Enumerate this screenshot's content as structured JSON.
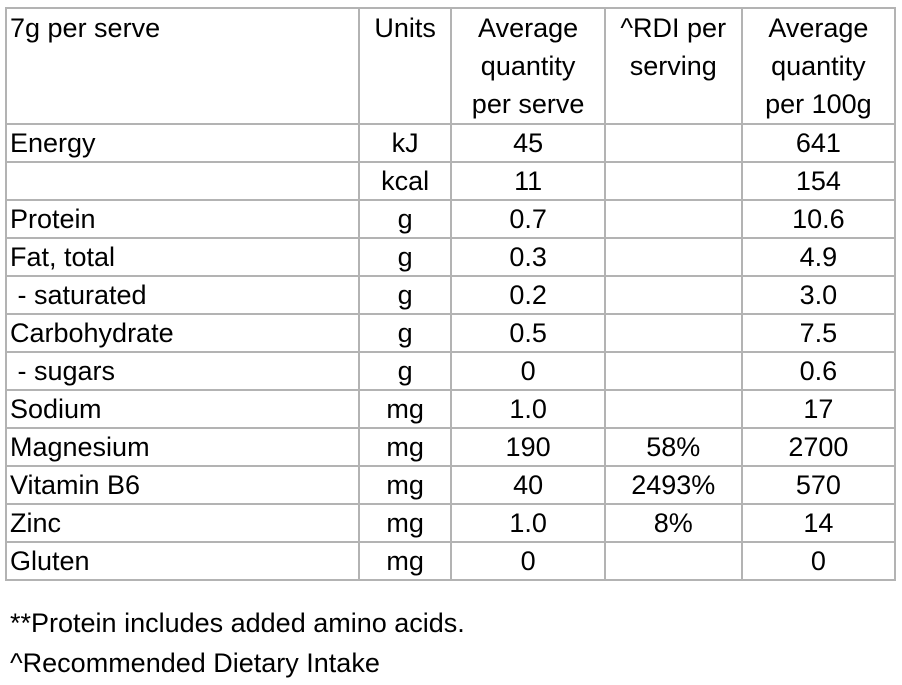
{
  "table": {
    "headers": {
      "label": "7g per serve",
      "units": "Units",
      "avg_line1": "Average",
      "avg_line2": "quantity",
      "avg_line3": "per serve",
      "rdi_line1": "^RDI per",
      "rdi_line2": "serving",
      "per100_line1": "Average",
      "per100_line2": "quantity",
      "per100_line3": "per 100g"
    },
    "rows": [
      {
        "name": "Energy",
        "units": "kJ",
        "per_serve": "45",
        "rdi": "",
        "per_100g": "641"
      },
      {
        "name": "",
        "units": "kcal",
        "per_serve": "11",
        "rdi": "",
        "per_100g": "154"
      },
      {
        "name": "Protein",
        "units": "g",
        "per_serve": "0.7",
        "rdi": "",
        "per_100g": "10.6"
      },
      {
        "name": "Fat, total",
        "units": "g",
        "per_serve": "0.3",
        "rdi": "",
        "per_100g": "4.9"
      },
      {
        "name": " - saturated",
        "units": "g",
        "per_serve": "0.2",
        "rdi": "",
        "per_100g": "3.0"
      },
      {
        "name": "Carbohydrate",
        "units": "g",
        "per_serve": "0.5",
        "rdi": "",
        "per_100g": "7.5"
      },
      {
        "name": " - sugars",
        "units": "g",
        "per_serve": "0",
        "rdi": "",
        "per_100g": "0.6"
      },
      {
        "name": "Sodium",
        "units": "mg",
        "per_serve": "1.0",
        "rdi": "",
        "per_100g": "17"
      },
      {
        "name": "Magnesium",
        "units": "mg",
        "per_serve": "190",
        "rdi": "58%",
        "per_100g": "2700"
      },
      {
        "name": "Vitamin B6",
        "units": "mg",
        "per_serve": "40",
        "rdi": "2493%",
        "per_100g": "570"
      },
      {
        "name": "Zinc",
        "units": "mg",
        "per_serve": "1.0",
        "rdi": "8%",
        "per_100g": "14"
      },
      {
        "name": "Gluten",
        "units": "mg",
        "per_serve": "0",
        "rdi": "",
        "per_100g": "0"
      }
    ]
  },
  "footnotes": {
    "protein": "**Protein includes added amino acids.",
    "rdi": "^Recommended Dietary Intake"
  },
  "colors": {
    "border": "#b3b3b3",
    "text": "#000000",
    "background": "#ffffff"
  }
}
